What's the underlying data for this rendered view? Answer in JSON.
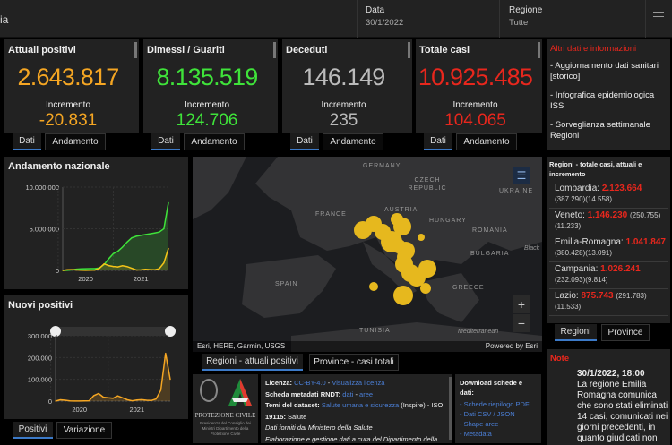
{
  "header": {
    "title_fragment": "ia",
    "date_label": "Data",
    "date_value": "30/1/2022",
    "region_label": "Regione",
    "region_value": "Tutte",
    "menu_icon": "hamburger-icon"
  },
  "cards": [
    {
      "title": "Attuali positivi",
      "value": "2.643.817",
      "inc_label": "Incremento",
      "inc_value": "-20.831",
      "color": "#f5a623",
      "tabs": [
        "Dati",
        "Andamento"
      ]
    },
    {
      "title": "Dimessi / Guariti",
      "value": "8.135.519",
      "inc_label": "Incremento",
      "inc_value": "124.706",
      "color": "#3fe33a",
      "tabs": [
        "Dati",
        "Andamento"
      ]
    },
    {
      "title": "Deceduti",
      "value": "146.149",
      "inc_label": "Incremento",
      "inc_value": "235",
      "color": "#bbbbbb",
      "tabs": [
        "Dati",
        "Andamento"
      ]
    },
    {
      "title": "Totale casi",
      "value": "10.925.485",
      "inc_label": "Incremento",
      "inc_value": "104.065",
      "color": "#e8271d",
      "tabs": [
        "Dati",
        "Andamento"
      ]
    }
  ],
  "info": {
    "title": "Altri dati e informazioni",
    "links": [
      "- Aggiornamento dati sanitari [storico]",
      "- Infografica epidemiologica ISS",
      "- Sorveglianza settimanale Regioni"
    ]
  },
  "chart_data": [
    {
      "type": "area",
      "title": "Andamento nazionale",
      "ylim": [
        0,
        10000000
      ],
      "yticks": [
        "0",
        "5.000.000",
        "10.000.000"
      ],
      "xticks": [
        "2020",
        "2021"
      ],
      "x": [
        "2020-02",
        "2020-03",
        "2020-04",
        "2020-05",
        "2020-06",
        "2020-07",
        "2020-08",
        "2020-09",
        "2020-10",
        "2020-11",
        "2020-12",
        "2021-01",
        "2021-02",
        "2021-03",
        "2021-04",
        "2021-05",
        "2021-06",
        "2021-07",
        "2021-08",
        "2021-09",
        "2021-10",
        "2021-11",
        "2021-12",
        "2022-01"
      ],
      "series": [
        {
          "color": "#3fe33a",
          "values": [
            0,
            10000,
            60000,
            150000,
            190000,
            200000,
            210000,
            220000,
            300000,
            700000,
            1400000,
            2000000,
            2300000,
            2800000,
            3400000,
            3900000,
            4100000,
            4200000,
            4300000,
            4400000,
            4500000,
            4600000,
            5000000,
            8135519
          ]
        },
        {
          "color": "#f5c518",
          "values": [
            0,
            70000,
            100000,
            50000,
            20000,
            12000,
            20000,
            40000,
            260000,
            790000,
            580000,
            470000,
            420000,
            560000,
            460000,
            260000,
            50000,
            60000,
            130000,
            100000,
            80000,
            200000,
            900000,
            2643817
          ]
        }
      ]
    },
    {
      "type": "area",
      "title": "Nuovi positivi",
      "ylim": [
        0,
        300000
      ],
      "yticks": [
        "0",
        "100.000",
        "200.000",
        "300.000"
      ],
      "xticks": [
        "2020",
        "2021"
      ],
      "x": [
        "2020-02",
        "2020-03",
        "2020-04",
        "2020-05",
        "2020-06",
        "2020-07",
        "2020-08",
        "2020-09",
        "2020-10",
        "2020-11",
        "2020-12",
        "2021-01",
        "2021-02",
        "2021-03",
        "2021-04",
        "2021-05",
        "2021-06",
        "2021-07",
        "2021-08",
        "2021-09",
        "2021-10",
        "2021-11",
        "2021-12",
        "2022-01",
        "2022-01-30"
      ],
      "series": [
        {
          "color": "#f5a623",
          "values": [
            0,
            6000,
            4000,
            800,
            300,
            250,
            1000,
            1700,
            25000,
            35000,
            18000,
            15000,
            13000,
            24000,
            15000,
            6000,
            1500,
            5000,
            6500,
            4000,
            3000,
            10000,
            50000,
            220000,
            100000
          ]
        }
      ]
    }
  ],
  "chart_tabs": [
    "Positivi",
    "Variazione"
  ],
  "map": {
    "labels": [
      "GERMANY",
      "CZECH REPUBLIC",
      "UKRAINE",
      "FRANCE",
      "AUSTRIA",
      "HUNGARY",
      "ROMANIA",
      "BULGARIA",
      "SPAIN",
      "GREECE",
      "TUNISIA",
      "Mediterranean",
      "Black"
    ],
    "attribution": "Esri, HERE, Garmin, USGS",
    "powered": "Powered by Esri",
    "zoom_in": "+",
    "zoom_out": "−",
    "bubble_color": "#e6b81e"
  },
  "map_tabs": [
    "Regioni - attuali positivi",
    "Province - casi totali"
  ],
  "regions": {
    "title": "Regioni - totale casi, attuali e incremento",
    "items": [
      {
        "name": "Lombardia:",
        "total": "2.123.664",
        "current": "(387.290)",
        "inc": "(14.558)"
      },
      {
        "name": "Veneto:",
        "total": "1.146.230",
        "current": "(250.755)",
        "inc": "(11.233)"
      },
      {
        "name": "Emilia-Romagna:",
        "total": "1.041.847",
        "current": "(380.428)",
        "inc": "(13.091)"
      },
      {
        "name": "Campania:",
        "total": "1.026.241",
        "current": "(232.093)",
        "inc": "(9.814)"
      },
      {
        "name": "Lazio:",
        "total": "875.743",
        "current": "(291.783)",
        "inc": "(11.533)"
      }
    ],
    "tabs": [
      "Regioni",
      "Province"
    ]
  },
  "note": {
    "title": "Note",
    "date": "30/1/2022, 18:00",
    "text": "La regione Emilia Romagna comunica che sono stati eliminati 14 casi, comunicati nei giorni precedenti, in quanto giudicati non"
  },
  "footer": {
    "logo_text": "PROTEZIONE CIVILE",
    "logo_sub": "Presidenza del Consiglio dei Ministri Dipartimento della Protezione Civile",
    "licenza_label": "Licenza:",
    "licenza_value": "CC-BY-4.0",
    "licenza_link": "Visualizza licenza",
    "rndt_label": "Scheda metadati RNDT:",
    "rndt_dati": "dati",
    "rndt_aree": "aree",
    "temi_label": "Temi del dataset:",
    "temi_link": "Salute umana e sicurezza",
    "temi_rest": "(Inspire) - ISO",
    "iso_label": "19115:",
    "iso_value": "Salute",
    "line1": "Dati forniti dal Ministero della Salute",
    "line2": "Elaborazione e gestione dati a cura del Dipartimento della",
    "download_title": "Download schede e dati:",
    "download_links": [
      "- Schede riepilogo PDF",
      "- Dati CSV / JSON",
      "- Shape aree",
      "- Metadata"
    ]
  }
}
